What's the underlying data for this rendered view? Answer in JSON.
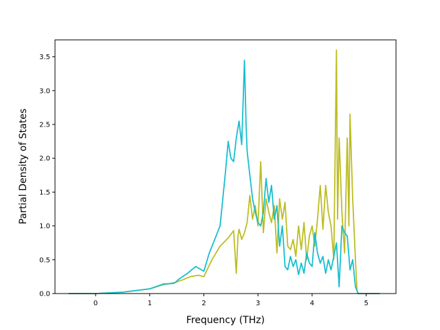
{
  "chart_data": {
    "type": "line",
    "title": "",
    "xlabel": "Frequency (THz)",
    "ylabel": "Partial Density of States",
    "xlim": [
      -0.75,
      5.55
    ],
    "ylim": [
      0.0,
      3.75
    ],
    "xticks": [
      0,
      1,
      2,
      3,
      4,
      5
    ],
    "xtick_labels": [
      "0",
      "1",
      "2",
      "3",
      "4",
      "5"
    ],
    "yticks": [
      0.0,
      0.5,
      1.0,
      1.5,
      2.0,
      2.5,
      3.0,
      3.5
    ],
    "ytick_labels": [
      "0.0",
      "0.5",
      "1.0",
      "1.5",
      "2.0",
      "2.5",
      "3.0",
      "3.5"
    ],
    "grid": false,
    "legend": "none",
    "series": [
      {
        "color": "#bcbd22",
        "x": [
          -0.5,
          0.0,
          0.5,
          1.0,
          1.25,
          1.45,
          1.6,
          1.75,
          1.9,
          2.0,
          2.15,
          2.3,
          2.45,
          2.55,
          2.6,
          2.63,
          2.65,
          2.7,
          2.75,
          2.8,
          2.85,
          2.9,
          2.95,
          3.0,
          3.05,
          3.1,
          3.15,
          3.2,
          3.25,
          3.3,
          3.35,
          3.4,
          3.45,
          3.5,
          3.55,
          3.6,
          3.65,
          3.7,
          3.75,
          3.8,
          3.85,
          3.9,
          3.95,
          4.0,
          4.05,
          4.1,
          4.15,
          4.2,
          4.25,
          4.3,
          4.35,
          4.4,
          4.45,
          4.47,
          4.5,
          4.55,
          4.6,
          4.65,
          4.68,
          4.7,
          4.75,
          4.8,
          4.83,
          4.85,
          5.0,
          5.25
        ],
        "y": [
          0.0,
          0.0,
          0.02,
          0.07,
          0.13,
          0.16,
          0.2,
          0.25,
          0.27,
          0.25,
          0.5,
          0.7,
          0.82,
          0.93,
          0.3,
          0.85,
          0.95,
          0.8,
          0.9,
          1.05,
          1.45,
          1.1,
          1.3,
          1.0,
          1.95,
          0.9,
          1.4,
          1.2,
          1.05,
          1.3,
          0.6,
          1.4,
          1.1,
          1.35,
          0.7,
          0.65,
          0.8,
          0.55,
          1.0,
          0.65,
          1.05,
          0.5,
          0.85,
          1.0,
          0.7,
          1.1,
          1.6,
          0.95,
          1.6,
          1.2,
          1.0,
          0.5,
          3.6,
          1.1,
          2.3,
          1.2,
          0.6,
          2.3,
          1.0,
          2.65,
          1.4,
          0.5,
          0.05,
          0.0,
          0.0,
          0.0
        ]
      },
      {
        "color": "#17becf",
        "x": [
          -0.5,
          0.0,
          0.5,
          1.0,
          1.25,
          1.45,
          1.55,
          1.7,
          1.85,
          2.0,
          2.1,
          2.2,
          2.3,
          2.4,
          2.45,
          2.5,
          2.55,
          2.6,
          2.65,
          2.7,
          2.75,
          2.78,
          2.8,
          2.85,
          2.9,
          2.95,
          3.0,
          3.05,
          3.1,
          3.15,
          3.2,
          3.25,
          3.3,
          3.35,
          3.4,
          3.45,
          3.5,
          3.55,
          3.6,
          3.65,
          3.7,
          3.75,
          3.8,
          3.85,
          3.9,
          3.95,
          4.0,
          4.05,
          4.1,
          4.15,
          4.2,
          4.25,
          4.3,
          4.35,
          4.4,
          4.45,
          4.5,
          4.55,
          4.6,
          4.65,
          4.7,
          4.75,
          4.8,
          4.85,
          5.0,
          5.25
        ],
        "y": [
          0.0,
          0.0,
          0.02,
          0.07,
          0.14,
          0.15,
          0.22,
          0.3,
          0.4,
          0.33,
          0.6,
          0.8,
          1.0,
          1.8,
          2.25,
          2.0,
          1.95,
          2.3,
          2.55,
          2.2,
          3.45,
          2.5,
          2.1,
          1.75,
          1.4,
          1.2,
          1.05,
          1.0,
          1.2,
          1.7,
          1.35,
          1.6,
          1.1,
          1.3,
          0.7,
          1.0,
          0.4,
          0.35,
          0.55,
          0.4,
          0.5,
          0.28,
          0.45,
          0.3,
          0.6,
          0.45,
          0.4,
          0.9,
          0.6,
          0.45,
          0.55,
          0.3,
          0.5,
          0.35,
          0.55,
          0.75,
          0.1,
          1.0,
          0.9,
          0.85,
          0.35,
          0.5,
          0.1,
          0.0,
          0.0,
          0.0
        ]
      }
    ]
  }
}
